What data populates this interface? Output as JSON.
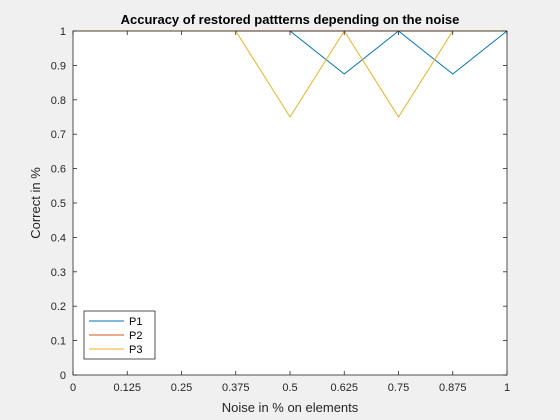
{
  "chart_data": {
    "type": "line",
    "title": "Accuracy of restored pattterns depending on the noise",
    "xlabel": "Noise in % on elements",
    "ylabel": "Correct in %",
    "xlim": [
      0,
      1
    ],
    "ylim": [
      0,
      1
    ],
    "xticks": [
      0,
      0.125,
      0.25,
      0.375,
      0.5,
      0.625,
      0.75,
      0.875,
      1
    ],
    "xtick_labels": [
      "0",
      "0.125",
      "0.25",
      "0.375",
      "0.5",
      "0.625",
      "0.75",
      "0.875",
      "1"
    ],
    "yticks": [
      0,
      0.1,
      0.2,
      0.3,
      0.4,
      0.5,
      0.6,
      0.7,
      0.8,
      0.9,
      1
    ],
    "ytick_labels": [
      "0",
      "0.1",
      "0.2",
      "0.3",
      "0.4",
      "0.5",
      "0.6",
      "0.7",
      "0.8",
      "0.9",
      "1"
    ],
    "grid": false,
    "legend_position": "bottom-left",
    "x": [
      0,
      0.125,
      0.25,
      0.375,
      0.5,
      0.625,
      0.75,
      0.875,
      1
    ],
    "series": [
      {
        "name": "P1",
        "color": "#0072BD",
        "values": [
          1,
          1,
          1,
          1,
          1,
          0.875,
          1,
          0.875,
          1
        ]
      },
      {
        "name": "P2",
        "color": "#D95319",
        "values": [
          1,
          1,
          1,
          1,
          1,
          1,
          1,
          1,
          1
        ]
      },
      {
        "name": "P3",
        "color": "#EDB120",
        "values": [
          1,
          1,
          1,
          1,
          0.75,
          1,
          0.75,
          1,
          1
        ]
      }
    ]
  }
}
